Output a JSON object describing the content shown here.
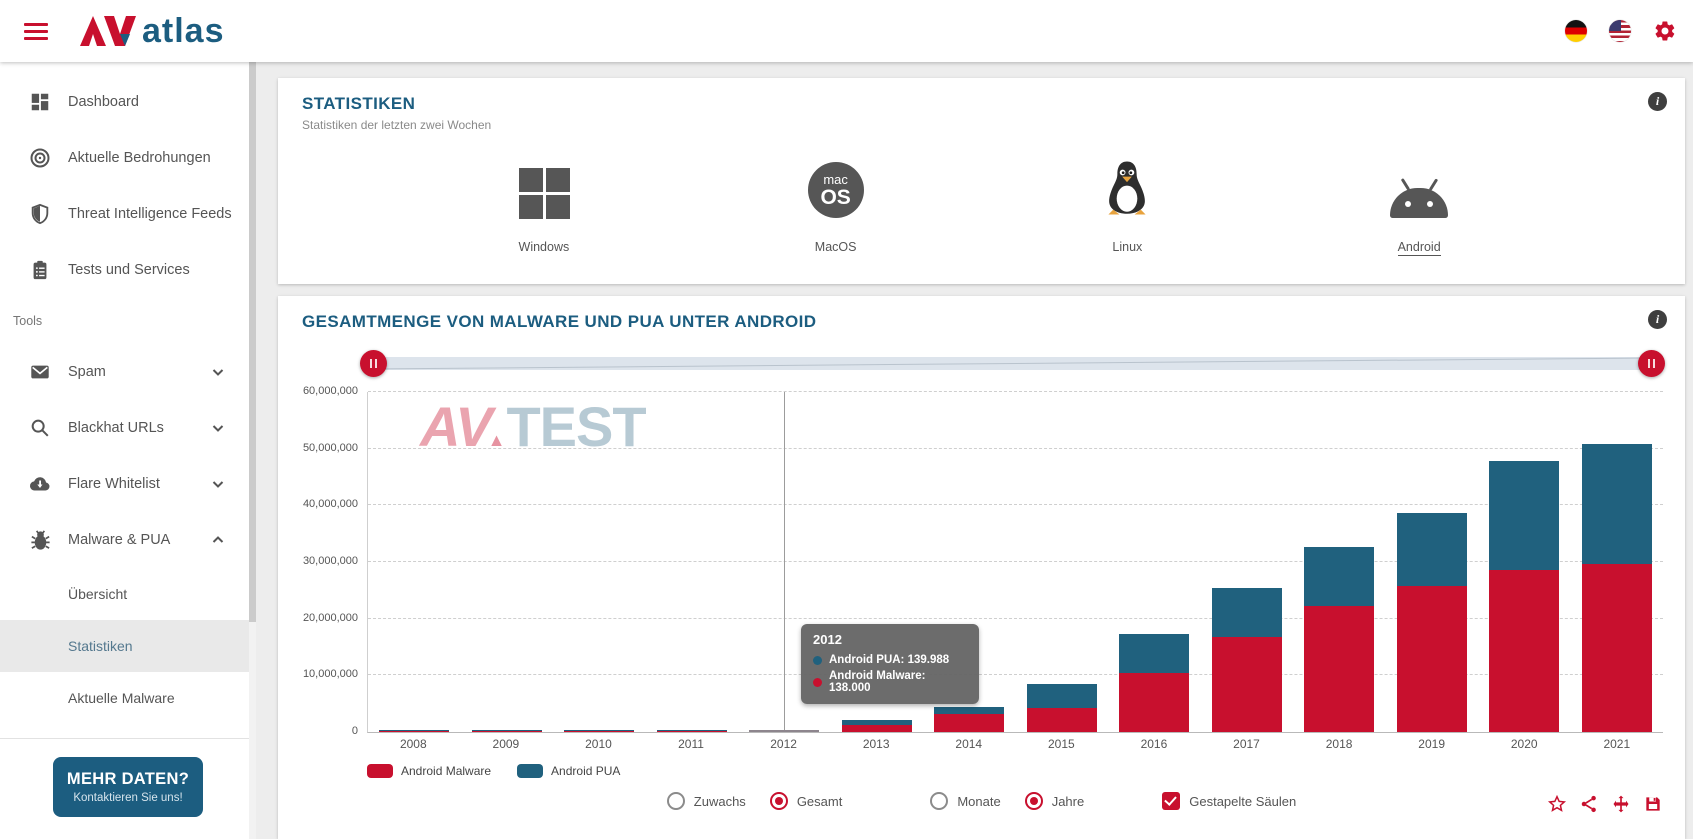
{
  "topbar": {
    "logo": {
      "av": "AV",
      "atlas": "atlas"
    },
    "icons": [
      "menu-icon",
      "flag-germany-icon",
      "flag-usa-icon",
      "gear-icon"
    ]
  },
  "sidebar": {
    "items": [
      {
        "label": "Dashboard",
        "icon": "dashboard-icon"
      },
      {
        "label": "Aktuelle Bedrohungen",
        "icon": "radar-icon"
      },
      {
        "label": "Threat Intelligence Feeds",
        "icon": "shield-icon"
      },
      {
        "label": "Tests und Services",
        "icon": "clipboard-icon"
      }
    ],
    "tools_label": "Tools",
    "tools": [
      {
        "label": "Spam",
        "icon": "envelope-icon",
        "expanded": false
      },
      {
        "label": "Blackhat URLs",
        "icon": "magnifier-icon",
        "expanded": false
      },
      {
        "label": "Flare Whitelist",
        "icon": "cloud-download-icon",
        "expanded": false
      },
      {
        "label": "Malware & PUA",
        "icon": "bug-icon",
        "expanded": true
      }
    ],
    "malware_children": [
      {
        "label": "Übersicht",
        "active": false
      },
      {
        "label": "Statistiken",
        "active": true
      },
      {
        "label": "Aktuelle Malware",
        "active": false
      }
    ],
    "cta": {
      "title": "MEHR DATEN?",
      "subtitle": "Kontaktieren Sie uns!"
    }
  },
  "stats_panel": {
    "title": "STATISTIKEN",
    "subtitle": "Statistiken der letzten zwei Wochen",
    "os": [
      {
        "label": "Windows",
        "active": false
      },
      {
        "label": "MacOS",
        "active": false
      },
      {
        "label": "Linux",
        "active": false
      },
      {
        "label": "Android",
        "active": true
      }
    ],
    "macos_icon_text": {
      "line1": "mac",
      "line2": "OS"
    }
  },
  "chart_panel": {
    "title": "GESAMTMENGE VON MALWARE UND PUA UNTER ANDROID",
    "watermark": {
      "av": "AV",
      "test": "TEST"
    },
    "tooltip": {
      "title": "2012",
      "rows": [
        {
          "label": "Android PUA: 139.988",
          "color": "#20617e"
        },
        {
          "label": "Android Malware: 138.000",
          "color": "#c8102e"
        }
      ]
    },
    "legend": [
      {
        "label": "Android Malware",
        "color": "#c8102e"
      },
      {
        "label": "Android PUA",
        "color": "#20617e"
      }
    ],
    "controls": {
      "group1": [
        {
          "label": "Zuwachs",
          "checked": false
        },
        {
          "label": "Gesamt",
          "checked": true
        }
      ],
      "group2": [
        {
          "label": "Monate",
          "checked": false
        },
        {
          "label": "Jahre",
          "checked": true
        }
      ],
      "checkbox": {
        "label": "Gestapelte Säulen",
        "checked": true
      }
    },
    "action_icons": [
      "star-icon",
      "share-icon",
      "move-icon",
      "save-icon"
    ]
  },
  "chart_data": {
    "type": "bar",
    "stacked": true,
    "title": "Gesamtmenge von Malware und PUA unter Android",
    "categories": [
      "2008",
      "2009",
      "2010",
      "2011",
      "2012",
      "2013",
      "2014",
      "2015",
      "2016",
      "2017",
      "2018",
      "2019",
      "2020",
      "2021"
    ],
    "series": [
      {
        "name": "Android Malware",
        "color": "#c8102e",
        "values": [
          8000,
          15000,
          35000,
          90000,
          138000,
          1200000,
          3200000,
          4200000,
          10500000,
          16800000,
          22300000,
          25800000,
          28600000,
          29700000
        ]
      },
      {
        "name": "Android PUA",
        "color": "#20617e",
        "values": [
          1000,
          2000,
          6000,
          25000,
          139988,
          900000,
          1300000,
          4300000,
          6800000,
          8700000,
          10400000,
          12800000,
          19200000,
          21200000
        ]
      }
    ],
    "ylim": [
      0,
      60000000
    ],
    "ytick_step": 10000000,
    "grid": "dashed-horizontal",
    "legend_position": "bottom-left",
    "highlight_year": "2012"
  },
  "colors": {
    "accent_red": "#c8102e",
    "petrol_blue": "#20617e",
    "title_blue": "#1c5d80"
  }
}
